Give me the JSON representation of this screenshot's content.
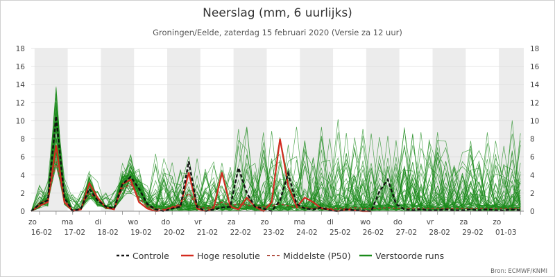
{
  "chart_data": {
    "type": "line",
    "title": "Neerslag (mm, 6 uurlijks)",
    "subtitle": "Groningen/Eelde, zaterdag 15 februari 2020 (Versie za 12 uur)",
    "source": "Bron: ECMWF/KNMI",
    "ylim": [
      0,
      18
    ],
    "y_ticks": [
      0,
      2,
      4,
      6,
      8,
      10,
      12,
      14,
      16,
      18
    ],
    "x_unit": "day index from zo 16-02 (0) to zo 01-03 (14), 6-hourly steps",
    "xlim": [
      -0.25,
      14.6
    ],
    "x_ticks": [
      {
        "day": "zo",
        "date": "16-02"
      },
      {
        "day": "ma",
        "date": "17-02"
      },
      {
        "day": "di",
        "date": "18-02"
      },
      {
        "day": "wo",
        "date": "19-02"
      },
      {
        "day": "do",
        "date": "20-02"
      },
      {
        "day": "vr",
        "date": "21-02"
      },
      {
        "day": "za",
        "date": "22-02"
      },
      {
        "day": "zo",
        "date": "23-02"
      },
      {
        "day": "ma",
        "date": "24-02"
      },
      {
        "day": "di",
        "date": "25-02"
      },
      {
        "day": "wo",
        "date": "26-02"
      },
      {
        "day": "do",
        "date": "27-02"
      },
      {
        "day": "vr",
        "date": "28-02"
      },
      {
        "day": "za",
        "date": "29-02"
      },
      {
        "day": "zo",
        "date": "01-03"
      }
    ],
    "legend": [
      {
        "label": "Controle",
        "color": "#111111",
        "style": "dashed-bold"
      },
      {
        "label": "Hoge resolutie",
        "color": "#d42a1f",
        "style": "solid"
      },
      {
        "label": "Middelste (P50)",
        "color": "#a83a2a",
        "style": "dashed"
      },
      {
        "label": "Verstoorde runs",
        "color": "#1a8a1a",
        "style": "solid"
      }
    ],
    "series": [
      {
        "name": "Controle",
        "x": [
          -0.25,
          0,
          0.25,
          0.5,
          0.75,
          1,
          1.25,
          1.5,
          1.75,
          2,
          2.25,
          2.5,
          2.75,
          3,
          3.25,
          3.5,
          3.75,
          4,
          4.25,
          4.5,
          4.75,
          5,
          5.25,
          5.5,
          5.75,
          6,
          6.25,
          6.5,
          6.75,
          7,
          7.25,
          7.5,
          7.75,
          8,
          8.25,
          8.5,
          8.75,
          9,
          9.25,
          9.5,
          9.75,
          10,
          10.25,
          10.5,
          10.75,
          11,
          11.25,
          11.5,
          11.75,
          12,
          12.25,
          12.5,
          12.75,
          13,
          13.25,
          13.5,
          13.75,
          14,
          14.25,
          14.5
        ],
        "y": [
          0,
          0.8,
          1.2,
          10.5,
          1.5,
          0,
          0.3,
          2.5,
          1.2,
          0.5,
          0.3,
          3,
          3.8,
          2.5,
          0.8,
          0.2,
          0,
          0.3,
          0.5,
          5.5,
          0.5,
          0,
          0.2,
          0.4,
          0.5,
          4.8,
          2,
          0.5,
          0.3,
          0,
          1.2,
          4.2,
          0.8,
          0.3,
          0.2,
          0.4,
          0.1,
          0,
          0.2,
          0.1,
          0.1,
          0,
          2.2,
          3.5,
          0.8,
          0.2,
          0.1,
          0.2,
          0.1,
          0.1,
          0.2,
          0.1,
          0.1,
          0.2,
          0.1,
          0.2,
          0.1,
          0.1,
          0.2,
          0.1
        ]
      },
      {
        "name": "Hoge resolutie",
        "x": [
          -0.25,
          0,
          0.25,
          0.5,
          0.75,
          1,
          1.25,
          1.5,
          1.75,
          2,
          2.25,
          2.5,
          2.75,
          3,
          3.25,
          3.5,
          3.75,
          4,
          4.25,
          4.5,
          4.75,
          5,
          5.25,
          5.5,
          5.75,
          6,
          6.25,
          6.5,
          6.75,
          7,
          7.25,
          7.5,
          7.75,
          8,
          8.25,
          8.5,
          8.75,
          9,
          9.25,
          9.5,
          9.75,
          10
        ],
        "y": [
          0,
          0.6,
          1.0,
          7.3,
          1.0,
          0,
          0.2,
          3.1,
          1.5,
          0.4,
          0.2,
          3.0,
          3.5,
          1.0,
          0.3,
          0,
          0.1,
          0.4,
          0.6,
          4.3,
          0.3,
          0,
          0.3,
          4.3,
          0.5,
          0.2,
          1.5,
          0.5,
          0,
          1.0,
          8.0,
          2.8,
          0.5,
          1.5,
          1.0,
          0.3,
          0.2,
          0,
          0.2,
          0.1,
          0,
          0
        ]
      },
      {
        "name": "Middelste (P50)",
        "x": [
          -0.25,
          0,
          0.25,
          0.5,
          0.75,
          1,
          1.25,
          1.5,
          1.75,
          2,
          2.25,
          2.5,
          2.75,
          3,
          3.25,
          3.5,
          3.75,
          4,
          4.25,
          4.5,
          4.75,
          5,
          5.25,
          5.5,
          5.75,
          6,
          6.25,
          6.5,
          6.75,
          7,
          7.25,
          7.5,
          7.75,
          8,
          8.25,
          8.5,
          8.75,
          9,
          9.25,
          9.5,
          9.75,
          10,
          10.25,
          10.5,
          10.75,
          11,
          11.25,
          11.5,
          11.75,
          12,
          12.25,
          12.5,
          12.75,
          13,
          13.25,
          13.5,
          13.75,
          14,
          14.25,
          14.5
        ],
        "y": [
          0,
          0.9,
          1.3,
          5.5,
          1.3,
          0.1,
          0.3,
          2.0,
          1.3,
          0.4,
          0.3,
          2.5,
          3.0,
          1.5,
          0.5,
          0.3,
          0.2,
          0.5,
          0.8,
          2.0,
          0.6,
          0.3,
          0.5,
          1.0,
          0.6,
          0.8,
          0.7,
          0.5,
          0.5,
          0.6,
          0.8,
          0.6,
          0.4,
          0.4,
          0.3,
          0.4,
          0.3,
          0.3,
          0.3,
          0.4,
          0.3,
          0.3,
          0.3,
          0.4,
          0.3,
          0.3,
          0.3,
          0.3,
          0.3,
          0.3,
          0.3,
          0.3,
          0.3,
          0.3,
          0.3,
          0.3,
          0.3,
          0.3,
          0.3,
          0.3
        ]
      }
    ]
  }
}
